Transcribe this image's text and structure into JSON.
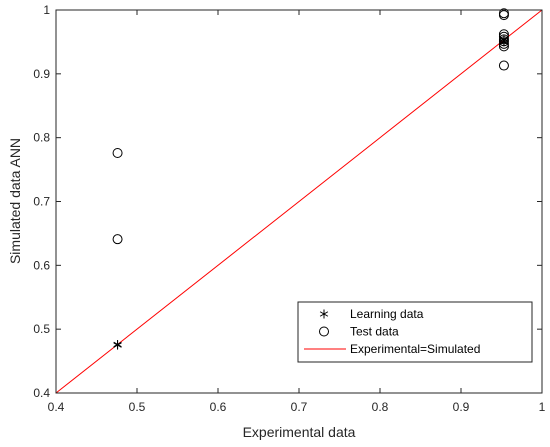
{
  "chart_data": {
    "type": "scatter",
    "xlabel": "Experimental data",
    "ylabel": "Simulated data ANN",
    "xlim": [
      0.4,
      1
    ],
    "ylim": [
      0.4,
      1
    ],
    "xticks": [
      "0.4",
      "0.5",
      "0.6",
      "0.7",
      "0.8",
      "0.9",
      "1"
    ],
    "yticks": [
      "0.4",
      "0.5",
      "0.6",
      "0.7",
      "0.8",
      "0.9",
      "1"
    ],
    "grid": false,
    "legend_position": "bottom-right",
    "series": [
      {
        "name": "Learning data",
        "marker": "asterisk",
        "color": "#000000",
        "points": [
          [
            0.476,
            0.476
          ],
          [
            0.476,
            0.475
          ],
          [
            0.953,
            0.953
          ],
          [
            0.953,
            0.95
          ]
        ]
      },
      {
        "name": "Test data",
        "marker": "circle",
        "color": "#000000",
        "points": [
          [
            0.476,
            0.776
          ],
          [
            0.476,
            0.641
          ],
          [
            0.953,
            0.995
          ],
          [
            0.953,
            0.992
          ],
          [
            0.953,
            0.962
          ],
          [
            0.953,
            0.958
          ],
          [
            0.953,
            0.954
          ],
          [
            0.953,
            0.951
          ],
          [
            0.953,
            0.947
          ],
          [
            0.953,
            0.943
          ],
          [
            0.953,
            0.913
          ]
        ]
      },
      {
        "name": "Experimental=Simulated",
        "marker": "line",
        "color": "#ff0000",
        "points": [
          [
            0.4,
            0.4
          ],
          [
            1,
            1
          ]
        ]
      }
    ]
  }
}
